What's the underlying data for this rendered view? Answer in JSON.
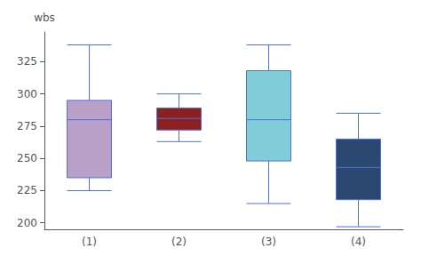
{
  "chart_data": {
    "type": "boxplot",
    "categories": [
      "(1)",
      "(2)",
      "(3)",
      "(4)"
    ],
    "values": [
      [
        225,
        235,
        280,
        295,
        338
      ],
      [
        263,
        272,
        281,
        289,
        300
      ],
      [
        215,
        248,
        280,
        318,
        338
      ],
      [
        197,
        218,
        243,
        265,
        285
      ]
    ],
    "colors": [
      "#b8a0c8",
      "#8b2020",
      "#80ccd8",
      "#2a4870"
    ],
    "ylabel": "wbs",
    "ylim": [
      195,
      348
    ],
    "yticks": [
      200,
      225,
      250,
      275,
      300,
      325
    ],
    "grid": false
  }
}
